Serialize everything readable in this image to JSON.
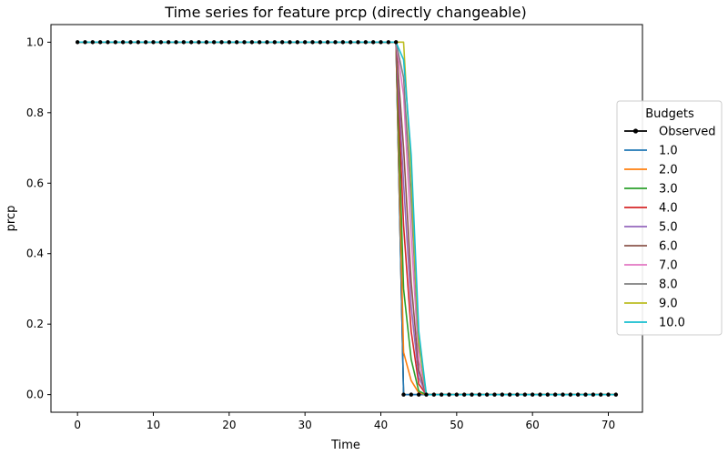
{
  "chart_data": {
    "type": "line",
    "title": "Time series for feature prcp (directly changeable)",
    "xlabel": "Time",
    "ylabel": "prcp",
    "xlim": [
      -3.5,
      74.5
    ],
    "ylim": [
      -0.05,
      1.05
    ],
    "xticks": [
      0,
      10,
      20,
      30,
      40,
      50,
      60,
      70
    ],
    "xtick_labels": [
      "0",
      "10",
      "20",
      "30",
      "40",
      "50",
      "60",
      "70"
    ],
    "yticks": [
      0.0,
      0.2,
      0.4,
      0.6,
      0.8,
      1.0
    ],
    "ytick_labels": [
      "0.0",
      "0.2",
      "0.4",
      "0.6",
      "0.8",
      "1.0"
    ],
    "grid": false,
    "legend": {
      "title": "Budgets",
      "placement": "right"
    },
    "x_range": [
      0,
      71
    ],
    "series": [
      {
        "name": "Observed",
        "color": "#000000",
        "marker": "dot",
        "points": [
          [
            0,
            1
          ],
          [
            42,
            1
          ],
          [
            43,
            0
          ],
          [
            71,
            0
          ]
        ]
      },
      {
        "name": "1.0",
        "color": "#1f77b4",
        "points": [
          [
            0,
            1
          ],
          [
            42,
            1
          ],
          [
            43,
            0
          ],
          [
            71,
            0
          ]
        ]
      },
      {
        "name": "2.0",
        "color": "#ff7f0e",
        "points": [
          [
            0,
            1
          ],
          [
            42,
            1
          ],
          [
            43,
            0.12
          ],
          [
            44,
            0.04
          ],
          [
            45,
            0.005
          ],
          [
            46,
            0
          ],
          [
            71,
            0
          ]
        ]
      },
      {
        "name": "3.0",
        "color": "#2ca02c",
        "points": [
          [
            0,
            1
          ],
          [
            42,
            1
          ],
          [
            43,
            0.3
          ],
          [
            44,
            0.1
          ],
          [
            45,
            0.01
          ],
          [
            46,
            0
          ],
          [
            71,
            0
          ]
        ]
      },
      {
        "name": "4.0",
        "color": "#d62728",
        "points": [
          [
            0,
            1
          ],
          [
            42,
            1
          ],
          [
            43,
            0.48
          ],
          [
            44,
            0.18
          ],
          [
            45,
            0.03
          ],
          [
            46,
            0
          ],
          [
            71,
            0
          ]
        ]
      },
      {
        "name": "5.0",
        "color": "#9467bd",
        "points": [
          [
            0,
            1
          ],
          [
            42,
            1
          ],
          [
            43,
            0.6
          ],
          [
            44,
            0.25
          ],
          [
            45,
            0.05
          ],
          [
            46,
            0
          ],
          [
            71,
            0
          ]
        ]
      },
      {
        "name": "6.0",
        "color": "#8c564b",
        "points": [
          [
            0,
            1
          ],
          [
            42,
            1
          ],
          [
            43,
            0.7
          ],
          [
            44,
            0.32
          ],
          [
            45,
            0.07
          ],
          [
            46,
            0
          ],
          [
            71,
            0
          ]
        ]
      },
      {
        "name": "7.0",
        "color": "#e377c2",
        "points": [
          [
            0,
            1
          ],
          [
            42,
            1
          ],
          [
            43,
            0.85
          ],
          [
            44,
            0.45
          ],
          [
            45,
            0.1
          ],
          [
            46,
            0
          ],
          [
            71,
            0
          ]
        ]
      },
      {
        "name": "8.0",
        "color": "#7f7f7f",
        "points": [
          [
            0,
            1
          ],
          [
            42,
            1
          ],
          [
            43,
            0.9
          ],
          [
            44,
            0.55
          ],
          [
            45,
            0.14
          ],
          [
            46,
            0
          ],
          [
            71,
            0
          ]
        ]
      },
      {
        "name": "9.0",
        "color": "#bcbd22",
        "points": [
          [
            0,
            1
          ],
          [
            43,
            1
          ],
          [
            44,
            0.62
          ],
          [
            45,
            0.15
          ],
          [
            46,
            0
          ],
          [
            71,
            0
          ]
        ]
      },
      {
        "name": "10.0",
        "color": "#17becf",
        "points": [
          [
            0,
            1
          ],
          [
            42,
            1
          ],
          [
            43,
            0.95
          ],
          [
            44,
            0.68
          ],
          [
            45,
            0.18
          ],
          [
            46,
            0
          ],
          [
            71,
            0
          ]
        ]
      }
    ]
  }
}
